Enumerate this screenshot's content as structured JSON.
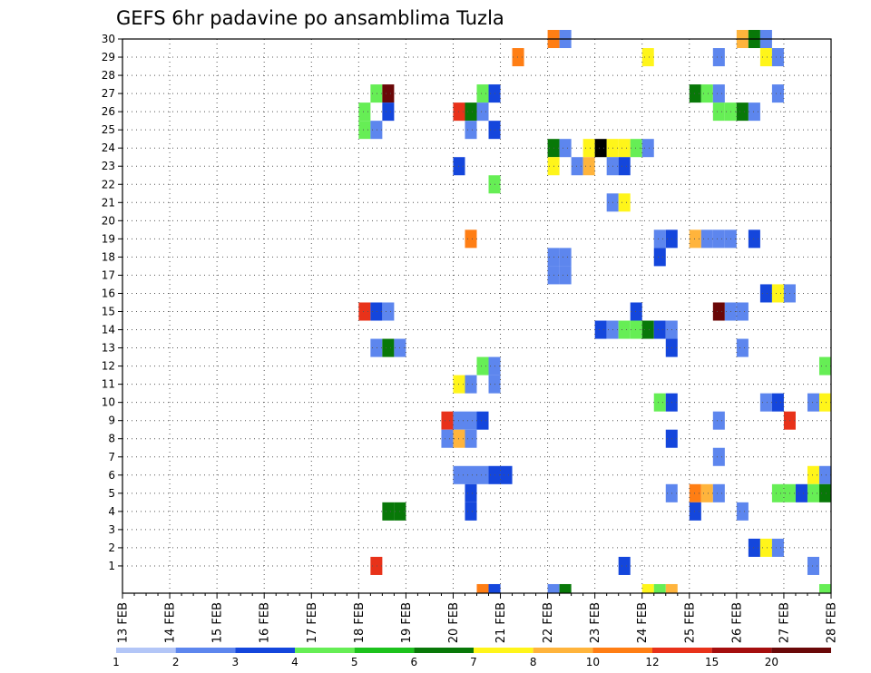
{
  "chart_data": {
    "type": "heatmap",
    "title": "GEFS 6hr padavine po ansamblima Tuzla",
    "xlabel": "",
    "ylabel": "",
    "x_tick_labels": [
      "13 FEB",
      "14 FEB",
      "15 FEB",
      "16 FEB",
      "17 FEB",
      "18 FEB",
      "19 FEB",
      "20 FEB",
      "21 FEB",
      "22 FEB",
      "23 FEB",
      "24 FEB",
      "25 FEB",
      "26 FEB",
      "27 FEB",
      "28 FEB"
    ],
    "xlim": [
      0,
      60
    ],
    "ylim": [
      0,
      30
    ],
    "y_ticks": [
      1,
      2,
      3,
      4,
      5,
      6,
      7,
      8,
      9,
      10,
      11,
      12,
      13,
      14,
      15,
      16,
      17,
      18,
      19,
      20,
      21,
      22,
      23,
      24,
      25,
      26,
      27,
      28,
      29,
      30
    ],
    "x_unit": "6-hour steps from 13 FEB 00Z",
    "y_unit": "ensemble member",
    "grid": true,
    "legend_position": "bottom",
    "colorbar": {
      "labels": [
        "1",
        "2",
        "3",
        "4",
        "5",
        "6",
        "7",
        "8",
        "10",
        "12",
        "15",
        "20"
      ],
      "colors": [
        "#b3c6f7",
        "#5d86ee",
        "#1446dc",
        "#66ee55",
        "#1dc21d",
        "#087808",
        "#fff51a",
        "#ffb43c",
        "#ff7e14",
        "#e8321a",
        "#a50e0e",
        "#6a0808"
      ]
    },
    "cells": [
      [
        36,
        30,
        8
      ],
      [
        37,
        30,
        1
      ],
      [
        52,
        30,
        7
      ],
      [
        53,
        30,
        5
      ],
      [
        54,
        30,
        1
      ],
      [
        33,
        29,
        8
      ],
      [
        44,
        29,
        6
      ],
      [
        50,
        29,
        1
      ],
      [
        54,
        29,
        6
      ],
      [
        55,
        29,
        1
      ],
      [
        21,
        27,
        3
      ],
      [
        22,
        27,
        11
      ],
      [
        30,
        27,
        3
      ],
      [
        31,
        27,
        2
      ],
      [
        48,
        27,
        5
      ],
      [
        49,
        27,
        3
      ],
      [
        50,
        27,
        1
      ],
      [
        55,
        27,
        1
      ],
      [
        20,
        26,
        3
      ],
      [
        22,
        26,
        2
      ],
      [
        28,
        26,
        9
      ],
      [
        29,
        26,
        5
      ],
      [
        30,
        26,
        1
      ],
      [
        50,
        26,
        3
      ],
      [
        51,
        26,
        3
      ],
      [
        52,
        26,
        5
      ],
      [
        53,
        26,
        1
      ],
      [
        20,
        25,
        3
      ],
      [
        21,
        25,
        1
      ],
      [
        29,
        25,
        1
      ],
      [
        31,
        25,
        2
      ],
      [
        36,
        24,
        5
      ],
      [
        37,
        24,
        1
      ],
      [
        39,
        24,
        6
      ],
      [
        40,
        24,
        12
      ],
      [
        41,
        24,
        6
      ],
      [
        42,
        24,
        6
      ],
      [
        43,
        24,
        3
      ],
      [
        44,
        24,
        1
      ],
      [
        28,
        23,
        2
      ],
      [
        36,
        23,
        6
      ],
      [
        38,
        23,
        1
      ],
      [
        39,
        23,
        7
      ],
      [
        41,
        23,
        1
      ],
      [
        42,
        23,
        2
      ],
      [
        31,
        22,
        3
      ],
      [
        41,
        21,
        1
      ],
      [
        42,
        21,
        6
      ],
      [
        29,
        19,
        8
      ],
      [
        45,
        19,
        1
      ],
      [
        46,
        19,
        2
      ],
      [
        48,
        19,
        7
      ],
      [
        49,
        19,
        1
      ],
      [
        50,
        19,
        1
      ],
      [
        51,
        19,
        1
      ],
      [
        53,
        19,
        2
      ],
      [
        36,
        18,
        1
      ],
      [
        37,
        18,
        1
      ],
      [
        45,
        18,
        2
      ],
      [
        36,
        17,
        1
      ],
      [
        37,
        17,
        1
      ],
      [
        54,
        16,
        2
      ],
      [
        55,
        16,
        6
      ],
      [
        56,
        16,
        1
      ],
      [
        20,
        15,
        9
      ],
      [
        21,
        15,
        2
      ],
      [
        22,
        15,
        1
      ],
      [
        43,
        15,
        2
      ],
      [
        50,
        15,
        11
      ],
      [
        51,
        15,
        1
      ],
      [
        52,
        15,
        1
      ],
      [
        40,
        14,
        2
      ],
      [
        41,
        14,
        1
      ],
      [
        42,
        14,
        3
      ],
      [
        43,
        14,
        3
      ],
      [
        44,
        14,
        5
      ],
      [
        45,
        14,
        2
      ],
      [
        46,
        14,
        1
      ],
      [
        21,
        13,
        1
      ],
      [
        22,
        13,
        5
      ],
      [
        23,
        13,
        1
      ],
      [
        46,
        13,
        2
      ],
      [
        52,
        13,
        1
      ],
      [
        30,
        12,
        3
      ],
      [
        31,
        12,
        1
      ],
      [
        59,
        12,
        3
      ],
      [
        28,
        11,
        6
      ],
      [
        29,
        11,
        1
      ],
      [
        31,
        11,
        1
      ],
      [
        45,
        10,
        3
      ],
      [
        46,
        10,
        2
      ],
      [
        54,
        10,
        1
      ],
      [
        55,
        10,
        2
      ],
      [
        58,
        10,
        1
      ],
      [
        59,
        10,
        6
      ],
      [
        27,
        9,
        9
      ],
      [
        28,
        9,
        1
      ],
      [
        29,
        9,
        1
      ],
      [
        30,
        9,
        2
      ],
      [
        50,
        9,
        1
      ],
      [
        56,
        9,
        9
      ],
      [
        27,
        8,
        1
      ],
      [
        28,
        8,
        7
      ],
      [
        29,
        8,
        1
      ],
      [
        46,
        8,
        2
      ],
      [
        50,
        7,
        1
      ],
      [
        28,
        6,
        1
      ],
      [
        29,
        6,
        1
      ],
      [
        30,
        6,
        1
      ],
      [
        31,
        6,
        2
      ],
      [
        32,
        6,
        2
      ],
      [
        58,
        6,
        6
      ],
      [
        59,
        6,
        1
      ],
      [
        29,
        5,
        2
      ],
      [
        46,
        5,
        1
      ],
      [
        48,
        5,
        8
      ],
      [
        49,
        5,
        7
      ],
      [
        50,
        5,
        1
      ],
      [
        55,
        5,
        3
      ],
      [
        56,
        5,
        3
      ],
      [
        57,
        5,
        2
      ],
      [
        58,
        5,
        3
      ],
      [
        59,
        5,
        5
      ],
      [
        22,
        4,
        5
      ],
      [
        23,
        4,
        5
      ],
      [
        29,
        4,
        2
      ],
      [
        48,
        4,
        2
      ],
      [
        52,
        4,
        1
      ],
      [
        53,
        2,
        2
      ],
      [
        54,
        2,
        6
      ],
      [
        55,
        2,
        1
      ],
      [
        21,
        1,
        9
      ],
      [
        42,
        1,
        2
      ],
      [
        58,
        1,
        1
      ],
      [
        30,
        0,
        8
      ],
      [
        31,
        0,
        2
      ],
      [
        36,
        0,
        1
      ],
      [
        37,
        0,
        5
      ],
      [
        44,
        0,
        6
      ],
      [
        45,
        0,
        3
      ],
      [
        46,
        0,
        7
      ],
      [
        59,
        0,
        3
      ]
    ]
  }
}
